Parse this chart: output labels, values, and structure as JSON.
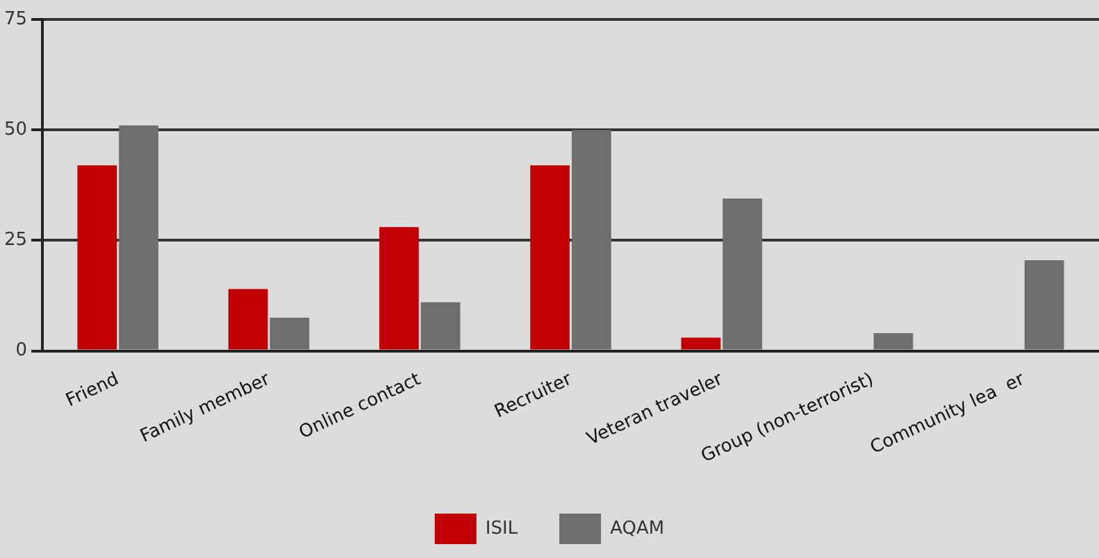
{
  "chart_data": {
    "type": "bar",
    "categories": [
      "Friend",
      "Family member",
      "Online contact",
      "Recruiter",
      "Veteran traveler",
      "Group (non-terrorist)",
      "Community lea  er"
    ],
    "series": [
      {
        "name": "ISIL",
        "color": "#c00000",
        "values": [
          42,
          14,
          28,
          42,
          3,
          null,
          null
        ]
      },
      {
        "name": "AQAM",
        "color": "#6e6e6e",
        "values": [
          51,
          7.5,
          11,
          50,
          34.5,
          4,
          20.5
        ]
      }
    ],
    "ylim": [
      0,
      75
    ],
    "yticks": [
      0,
      25,
      50,
      75
    ],
    "grid": "y",
    "legend": "bottom"
  }
}
